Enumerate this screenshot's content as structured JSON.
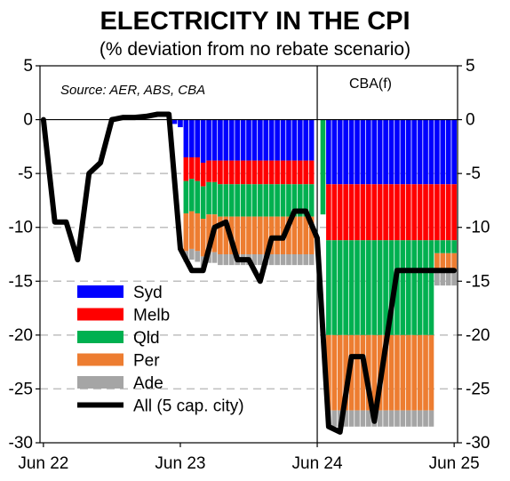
{
  "chart_data": {
    "type": "bar",
    "title": "ELECTRICITY IN THE CPI",
    "subtitle": "(% deviation from no rebate scenario)",
    "source": "Source: AER, ABS, CBA",
    "forecast_label": "CBA(f)",
    "xlabel": "",
    "ylabel": "",
    "ylim": [
      -30,
      5
    ],
    "yticks": [
      5,
      0,
      -5,
      -10,
      -15,
      -20,
      -25,
      -30
    ],
    "x_tick_labels": [
      "Jun 22",
      "Jun 23",
      "Jun 24",
      "Jun 25"
    ],
    "x_tick_months": [
      0,
      12,
      24,
      36
    ],
    "grid": true,
    "legend_position": "bottom-left",
    "colors": {
      "Syd": "#0000ff",
      "Melb": "#ff0000",
      "Qld": "#00b050",
      "Per": "#ed7d31",
      "Ade": "#a5a5a5",
      "line": "#000000",
      "grid": "#bfbfbf"
    },
    "bar_months": [
      11.5,
      12,
      12.5,
      13,
      13.5,
      14,
      14.5,
      15,
      15.5,
      16,
      16.5,
      17,
      17.5,
      18,
      18.5,
      19,
      19.5,
      20,
      20.5,
      21,
      21.5,
      22,
      22.5,
      23,
      23.5,
      24.5,
      25,
      25.5,
      26,
      26.5,
      27,
      27.5,
      28,
      28.5,
      29,
      29.5,
      30,
      30.5,
      31,
      31.5,
      32,
      32.5,
      33,
      33.5,
      34,
      34.5,
      35,
      35.5,
      36
    ],
    "series": [
      {
        "name": "Syd",
        "values": [
          -0.4,
          -0.7,
          -3.5,
          -3.5,
          -3.5,
          -4,
          -3.8,
          -3.8,
          -3.8,
          -3.8,
          -3.8,
          -3.8,
          -3.8,
          -3.8,
          -3.8,
          -3.8,
          -3.8,
          -3.8,
          -3.8,
          -3.8,
          -3.8,
          -3.8,
          -3.8,
          -3.8,
          -3.8,
          0,
          -6,
          -6,
          -6,
          -6,
          -6,
          -6,
          -6,
          -6,
          -6,
          -6,
          -6,
          -6,
          -6,
          -6,
          -6,
          -6,
          -6,
          -6,
          -6,
          -6,
          -6,
          -6,
          -6
        ]
      },
      {
        "name": "Melb",
        "values": [
          0,
          0,
          -2.2,
          -2,
          -2.2,
          -2.2,
          -2,
          -2,
          -2.2,
          -2.2,
          -2.2,
          -2.2,
          -2.2,
          -2.2,
          -2.2,
          -2.2,
          -2.2,
          -2.2,
          -2.2,
          -2.2,
          -2.2,
          -2.2,
          -2.2,
          -2.2,
          -2.2,
          0,
          -5.2,
          -5.2,
          -5.2,
          -5.2,
          -5.2,
          -5.2,
          -5.2,
          -5.2,
          -5.2,
          -5.2,
          -5.2,
          -5.2,
          -5.2,
          -5.2,
          -5.2,
          -5.2,
          -5.2,
          -5.2,
          -5.2,
          -5.2,
          -5.2,
          -5.2,
          -5.2
        ]
      },
      {
        "name": "Qld",
        "values": [
          0,
          0,
          -3,
          -3,
          -3,
          -3,
          -3,
          -3,
          -3,
          -3,
          -3,
          -3,
          -3,
          -3,
          -3,
          -3,
          -3,
          -3,
          -3,
          -3,
          -3,
          -3,
          -3,
          -3,
          -3,
          -8.8,
          -8.8,
          -8.8,
          -8.8,
          -8.8,
          -8.8,
          -8.8,
          -8.8,
          -8.8,
          -8.8,
          -8.8,
          -8.8,
          -8.8,
          -8.8,
          -8.8,
          -8.8,
          -8.8,
          -8.8,
          -8.8,
          -8.8,
          -1.2,
          -1.2,
          -1.2,
          -1.2
        ]
      },
      {
        "name": "Per",
        "values": [
          0,
          0,
          -3.5,
          -3.5,
          -3.5,
          -3.5,
          -3.5,
          -3.5,
          -3.5,
          -3.5,
          -3.5,
          -3.5,
          -3.5,
          -3.5,
          -3.5,
          -3.5,
          -3.5,
          -3.5,
          -3.5,
          -3.5,
          -3.5,
          -3.5,
          -3.5,
          -3.5,
          -3.5,
          0,
          -7,
          -7,
          -7,
          -7,
          -7,
          -7,
          -7,
          -7,
          -7,
          -7,
          -7,
          -7,
          -7,
          -7,
          -7,
          -7,
          -7,
          -7,
          -7,
          -1.5,
          -1.5,
          -1.5,
          -1.5
        ]
      },
      {
        "name": "Ade",
        "values": [
          0,
          0,
          -1,
          -1,
          -1,
          -1,
          -1,
          -1,
          -1,
          -1,
          -1,
          -1,
          -1,
          -1,
          -1,
          -1,
          -1,
          -1,
          -1,
          -1,
          -1,
          -1,
          -1,
          -1,
          -1,
          0,
          -1.5,
          -1.5,
          -1.5,
          -1.5,
          -1.5,
          -1.5,
          -1.5,
          -1.5,
          -1.5,
          -1.5,
          -1.5,
          -1.5,
          -1.5,
          -1.5,
          -1.5,
          -1.5,
          -1.5,
          -1.5,
          -1.5,
          -1.5,
          -1.5,
          -1.5,
          -1.5
        ]
      }
    ],
    "line": {
      "name": "All (5 cap. city)",
      "x": [
        0,
        1,
        2,
        3,
        4,
        5,
        6,
        7,
        8,
        9,
        10,
        11,
        12,
        13,
        14,
        15,
        16,
        17,
        18,
        19,
        20,
        21,
        22,
        23,
        24,
        25,
        26,
        27,
        28,
        29,
        30,
        31,
        32,
        33,
        34,
        35,
        36
      ],
      "values": [
        0,
        -9.5,
        -9.5,
        -13,
        -5,
        -4,
        0,
        0.2,
        0.2,
        0.3,
        0.5,
        0.5,
        -12,
        -14,
        -14,
        -10,
        -9.5,
        -13,
        -13,
        -15,
        -11,
        -11,
        -8.5,
        -8.5,
        -11,
        -28.5,
        -29,
        -22,
        -22,
        -28,
        -21,
        -14,
        -14,
        -14,
        -14,
        -14,
        -14
      ]
    }
  },
  "legend": {
    "items": [
      {
        "label": "Syd",
        "key": "Syd"
      },
      {
        "label": "Melb",
        "key": "Melb"
      },
      {
        "label": "Qld",
        "key": "Qld"
      },
      {
        "label": "Per",
        "key": "Per"
      },
      {
        "label": "Ade",
        "key": "Ade"
      },
      {
        "label": "All (5 cap. city)",
        "key": "line"
      }
    ]
  }
}
